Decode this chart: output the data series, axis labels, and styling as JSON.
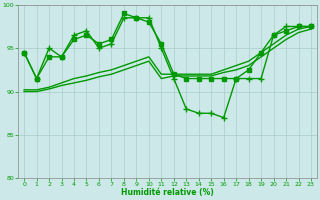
{
  "title": "",
  "xlabel": "Humidité relative (%)",
  "ylabel": "",
  "xlim": [
    -0.5,
    23.5
  ],
  "ylim": [
    80,
    100
  ],
  "yticks": [
    80,
    85,
    90,
    95,
    100
  ],
  "xticks": [
    0,
    1,
    2,
    3,
    4,
    5,
    6,
    7,
    8,
    9,
    10,
    11,
    12,
    13,
    14,
    15,
    16,
    17,
    18,
    19,
    20,
    21,
    22,
    23
  ],
  "bg_color": "#cce8e8",
  "grid_color": "#aacccc",
  "line_color": "#009900",
  "lines": [
    {
      "x": [
        0,
        1,
        2,
        3,
        4,
        5,
        6,
        7,
        8,
        9,
        10,
        11,
        12,
        13,
        14,
        15,
        16,
        17,
        18,
        19,
        20,
        21,
        22,
        23
      ],
      "y": [
        94.5,
        91.5,
        95.0,
        94.0,
        96.5,
        97.0,
        95.0,
        95.5,
        98.5,
        98.5,
        98.5,
        95.0,
        91.5,
        88.0,
        87.5,
        87.5,
        87.0,
        91.5,
        91.5,
        91.5,
        96.5,
        97.5,
        97.5,
        97.5
      ],
      "marker": "+",
      "markersize": 4.0,
      "linewidth": 1.0
    },
    {
      "x": [
        0,
        1,
        2,
        3,
        4,
        5,
        6,
        7,
        8,
        9,
        10,
        11,
        12,
        13,
        14,
        15,
        16,
        17,
        18,
        19,
        20,
        21,
        22,
        23
      ],
      "y": [
        94.5,
        91.5,
        94.0,
        94.0,
        96.0,
        96.5,
        95.5,
        96.0,
        99.0,
        98.5,
        98.0,
        95.5,
        92.0,
        91.5,
        91.5,
        91.5,
        91.5,
        91.5,
        92.5,
        94.5,
        96.5,
        97.0,
        97.5,
        97.5
      ],
      "marker": "s",
      "markersize": 2.5,
      "linewidth": 1.0
    },
    {
      "x": [
        0,
        1,
        2,
        3,
        4,
        5,
        6,
        7,
        8,
        9,
        10,
        11,
        12,
        13,
        14,
        15,
        16,
        17,
        18,
        19,
        20,
        21,
        22,
        23
      ],
      "y": [
        90.2,
        90.2,
        90.5,
        91.0,
        91.5,
        91.8,
        92.2,
        92.5,
        93.0,
        93.5,
        94.0,
        92.0,
        92.0,
        92.0,
        92.0,
        92.0,
        92.5,
        93.0,
        93.5,
        94.5,
        95.5,
        96.5,
        97.2,
        97.5
      ],
      "marker": null,
      "markersize": 0,
      "linewidth": 1.0
    },
    {
      "x": [
        0,
        1,
        2,
        3,
        4,
        5,
        6,
        7,
        8,
        9,
        10,
        11,
        12,
        13,
        14,
        15,
        16,
        17,
        18,
        19,
        20,
        21,
        22,
        23
      ],
      "y": [
        90.0,
        90.0,
        90.3,
        90.7,
        91.0,
        91.3,
        91.7,
        92.0,
        92.5,
        93.0,
        93.5,
        91.5,
        91.8,
        91.8,
        91.8,
        91.8,
        92.2,
        92.5,
        93.0,
        94.0,
        95.0,
        96.0,
        96.8,
        97.2
      ],
      "marker": null,
      "markersize": 0,
      "linewidth": 1.0
    }
  ]
}
